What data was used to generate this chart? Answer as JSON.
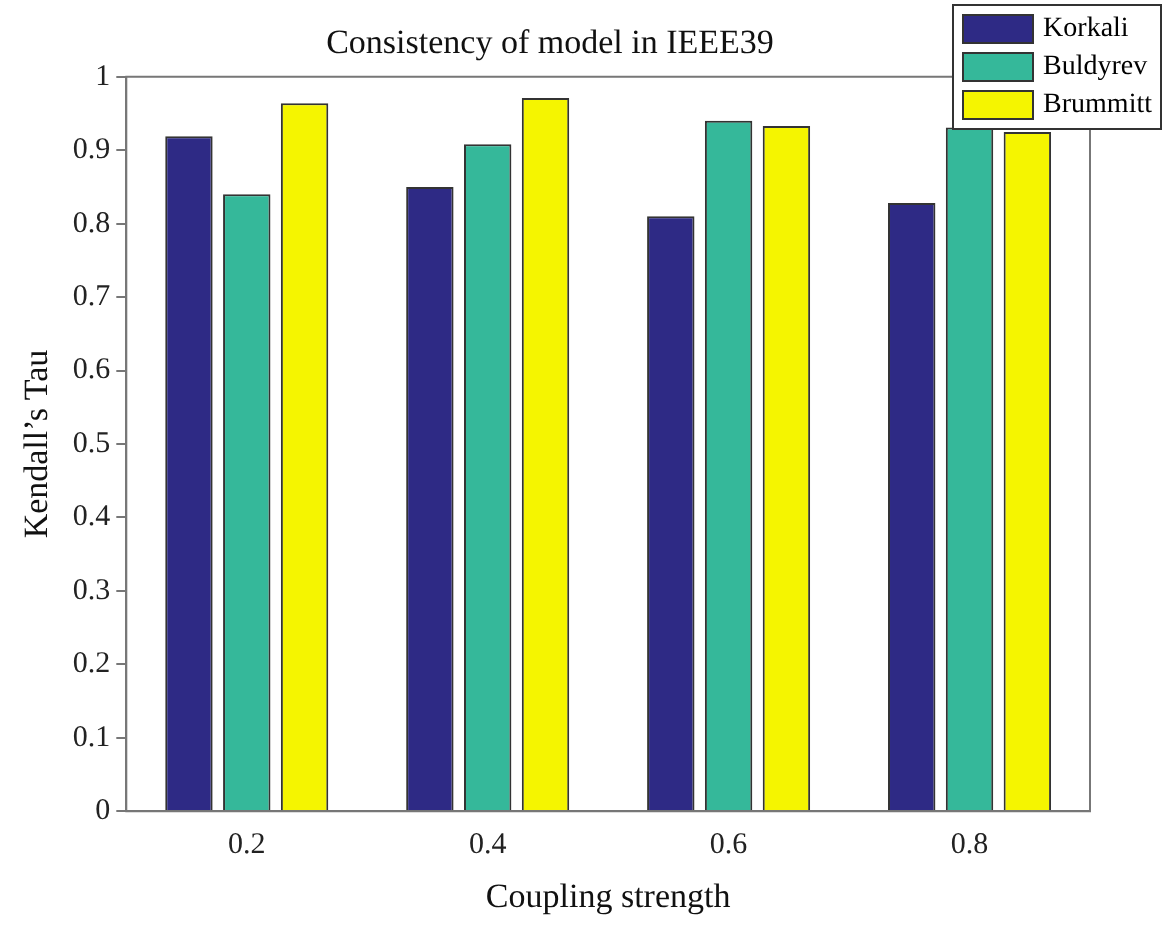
{
  "chart_data": {
    "type": "bar",
    "title": "Consistency of model in IEEE39",
    "xlabel": "Coupling strength",
    "ylabel": "Kendall’s Tau",
    "categories": [
      "0.2",
      "0.4",
      "0.6",
      "0.8"
    ],
    "series": [
      {
        "name": "Korkali",
        "color": "#2e2a85",
        "values": [
          0.919,
          0.85,
          0.81,
          0.828
        ]
      },
      {
        "name": "Buldyrev",
        "color": "#35b89a",
        "values": [
          0.84,
          0.908,
          0.94,
          0.931
        ]
      },
      {
        "name": "Brummitt",
        "color": "#f5f500",
        "values": [
          0.964,
          0.971,
          0.933,
          0.925
        ]
      }
    ],
    "ylim": [
      0,
      1
    ],
    "yticks": [
      0,
      0.1,
      0.2,
      0.3,
      0.4,
      0.5,
      0.6,
      0.7,
      0.8,
      0.9,
      1
    ],
    "grid": false,
    "legend": "top right"
  }
}
